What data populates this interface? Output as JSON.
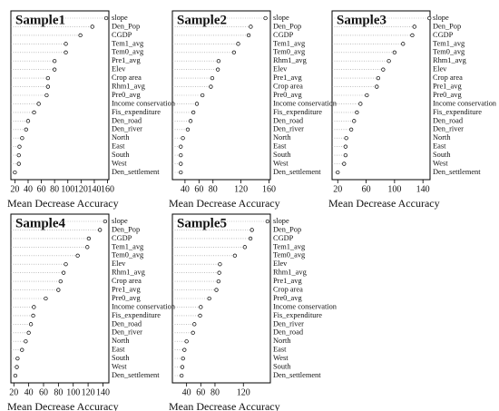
{
  "chart_data": [
    {
      "type": "dot",
      "title": "Sample1",
      "xlabel": "Mean Decrease Accuracy",
      "categories": [
        "slope",
        "Den_Pop",
        "CGDP",
        "Tem1_avg",
        "Tem0_avg",
        "Pre1_avg",
        "Elev",
        "Crop area",
        "Rhm1_avg",
        "Pre0_avg",
        "Income conservation",
        "Fis_expenditure",
        "Den_road",
        "Den_river",
        "North",
        "East",
        "South",
        "West",
        "Den_settlement"
      ],
      "values": [
        158,
        137,
        119,
        97,
        97,
        80,
        80,
        70,
        70,
        68,
        56,
        49,
        40,
        37,
        31,
        27,
        26,
        26,
        20
      ],
      "xlim": [
        14,
        162
      ],
      "xticks": [
        20,
        40,
        60,
        80,
        100,
        120,
        140,
        160
      ]
    },
    {
      "type": "dot",
      "title": "Sample2",
      "xlabel": "Mean Decrease Accuracy",
      "categories": [
        "slope",
        "Den_Pop",
        "CGDP",
        "Tem1_avg",
        "Tem0_avg",
        "Rhm1_avg",
        "Elev",
        "Pre1_avg",
        "Crop area",
        "Pre0_avg",
        "Income conservation",
        "Fis_expenditure",
        "Den_road",
        "Den_river",
        "North",
        "East",
        "South",
        "West",
        "Den_settlement"
      ],
      "values": [
        155,
        134,
        131,
        116,
        110,
        88,
        87,
        79,
        77,
        65,
        57,
        52,
        48,
        44,
        37,
        34,
        34,
        34,
        34
      ],
      "xlim": [
        22,
        162
      ],
      "xticks": [
        40,
        60,
        80,
        120,
        160
      ]
    },
    {
      "type": "dot",
      "title": "Sample3",
      "xlabel": "Mean Decrease Accuracy",
      "categories": [
        "slope",
        "Den_Pop",
        "CGDP",
        "Tem1_avg",
        "Tem0_avg",
        "Rhm1_avg",
        "Elev",
        "Crop area",
        "Pre1_avg",
        "Pre0_avg",
        "Income conservation",
        "Fis_expenditure",
        "Den_road",
        "Den_river",
        "North",
        "East",
        "South",
        "West",
        "Den_settlement"
      ],
      "values": [
        149,
        128,
        125,
        112,
        100,
        92,
        84,
        77,
        75,
        61,
        52,
        47,
        43,
        39,
        32,
        31,
        31,
        29,
        20
      ],
      "xlim": [
        12,
        150
      ],
      "xticks": [
        20,
        60,
        100,
        140
      ]
    },
    {
      "type": "dot",
      "title": "Sample4",
      "xlabel": "Mean Decrease Accuracy",
      "categories": [
        "slope",
        "Den_Pop",
        "CGDP",
        "Tem1_avg",
        "Tem0_avg",
        "Elev",
        "Rhm1_avg",
        "Crop area",
        "Pre1_avg",
        "Pre0_avg",
        "Income conservation",
        "Fis_expenditure",
        "Den_road",
        "Den_river",
        "North",
        "East",
        "South",
        "West",
        "Den_settlement"
      ],
      "values": [
        143,
        136,
        121,
        119,
        106,
        90,
        87,
        83,
        80,
        63,
        47,
        46,
        43,
        40,
        36,
        31,
        25,
        24,
        22
      ],
      "xlim": [
        16,
        148
      ],
      "xticks": [
        20,
        40,
        60,
        80,
        100,
        120,
        140
      ]
    },
    {
      "type": "dot",
      "title": "Sample5",
      "xlabel": "Mean Decrease Accuracy",
      "categories": [
        "slope",
        "Den_Pop",
        "CGDP",
        "Tem1_avg",
        "Tem0_avg",
        "Elev",
        "Rhm1_avg",
        "Pre1_avg",
        "Crop area",
        "Pre0_avg",
        "Income conservation",
        "Fis_expenditure",
        "Den_river",
        "Den_road",
        "North",
        "East",
        "West",
        "South",
        "Den_settlement"
      ],
      "values": [
        154,
        132,
        130,
        122,
        108,
        87,
        86,
        85,
        82,
        72,
        60,
        59,
        51,
        49,
        40,
        37,
        35,
        34,
        33
      ],
      "xlim": [
        20,
        158
      ],
      "xticks": [
        40,
        60,
        80,
        120
      ]
    }
  ]
}
